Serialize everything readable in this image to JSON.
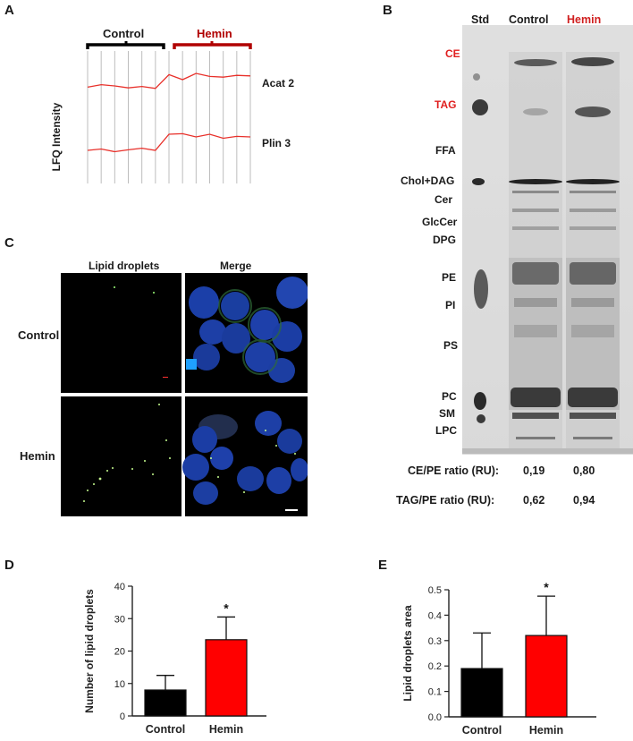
{
  "panel_a": {
    "letter": "A",
    "y_label": "LFQ Intensity",
    "groups": [
      {
        "label": "Control",
        "color": "#000000"
      },
      {
        "label": "Hemin",
        "color": "#b00000"
      }
    ],
    "genes": [
      "Acat 2",
      "Plin 3"
    ],
    "line_color": "#e8302a",
    "profiles": {
      "acat2": [
        0.45,
        0.55,
        0.5,
        0.42,
        0.48,
        0.4,
        0.95,
        0.75,
        1.0,
        0.88,
        0.85,
        0.92,
        0.9
      ],
      "plin3": [
        0.4,
        0.45,
        0.35,
        0.42,
        0.48,
        0.4,
        1.0,
        1.02,
        0.9,
        1.0,
        0.85,
        0.92,
        0.9
      ]
    }
  },
  "panel_b": {
    "letter": "B",
    "lanes": [
      "Std",
      "Control",
      "Hemin"
    ],
    "bands": [
      {
        "label": "CE",
        "highlight": true
      },
      {
        "label": "TAG",
        "highlight": true
      },
      {
        "label": "FFA",
        "highlight": false
      },
      {
        "label": "Chol+DAG",
        "highlight": false
      },
      {
        "label": "Cer",
        "highlight": false
      },
      {
        "label": "GlcCer",
        "highlight": false
      },
      {
        "label": "DPG",
        "highlight": false
      },
      {
        "label": "PE",
        "highlight": false
      },
      {
        "label": "PI",
        "highlight": false
      },
      {
        "label": "PS",
        "highlight": false
      },
      {
        "label": "PC",
        "highlight": false
      },
      {
        "label": "SM",
        "highlight": false
      },
      {
        "label": "LPC",
        "highlight": false
      }
    ],
    "ratios": [
      {
        "label": "CE/PE ratio (RU):",
        "control": "0,19",
        "hemin": "0,80"
      },
      {
        "label": "TAG/PE ratio (RU):",
        "control": "0,62",
        "hemin": "0,94"
      }
    ]
  },
  "panel_c": {
    "letter": "C",
    "columns": [
      "Lipid droplets",
      "Merge"
    ],
    "rows": [
      "Control",
      "Hemin"
    ]
  },
  "panel_d": {
    "letter": "D",
    "chart_data": {
      "type": "bar",
      "categories": [
        "Control",
        "Hemin"
      ],
      "values": [
        8.0,
        23.5
      ],
      "errors": [
        4.5,
        7.0
      ],
      "colors": [
        "#000000",
        "#ff0000"
      ],
      "ylabel": "Number of lipid droplets",
      "ylim": [
        0,
        40
      ],
      "yticks": [
        "0",
        "10",
        "20",
        "30",
        "40"
      ],
      "annotation": "*"
    }
  },
  "panel_e": {
    "letter": "E",
    "chart_data": {
      "type": "bar",
      "categories": [
        "Control",
        "Hemin"
      ],
      "values": [
        0.19,
        0.32
      ],
      "errors": [
        0.14,
        0.155
      ],
      "colors": [
        "#000000",
        "#ff0000"
      ],
      "ylabel": "Lipid droplets area",
      "ylim": [
        0,
        0.5
      ],
      "yticks": [
        "0.0",
        "0.1",
        "0.2",
        "0.3",
        "0.4",
        "0.5"
      ],
      "annotation": "*"
    }
  }
}
